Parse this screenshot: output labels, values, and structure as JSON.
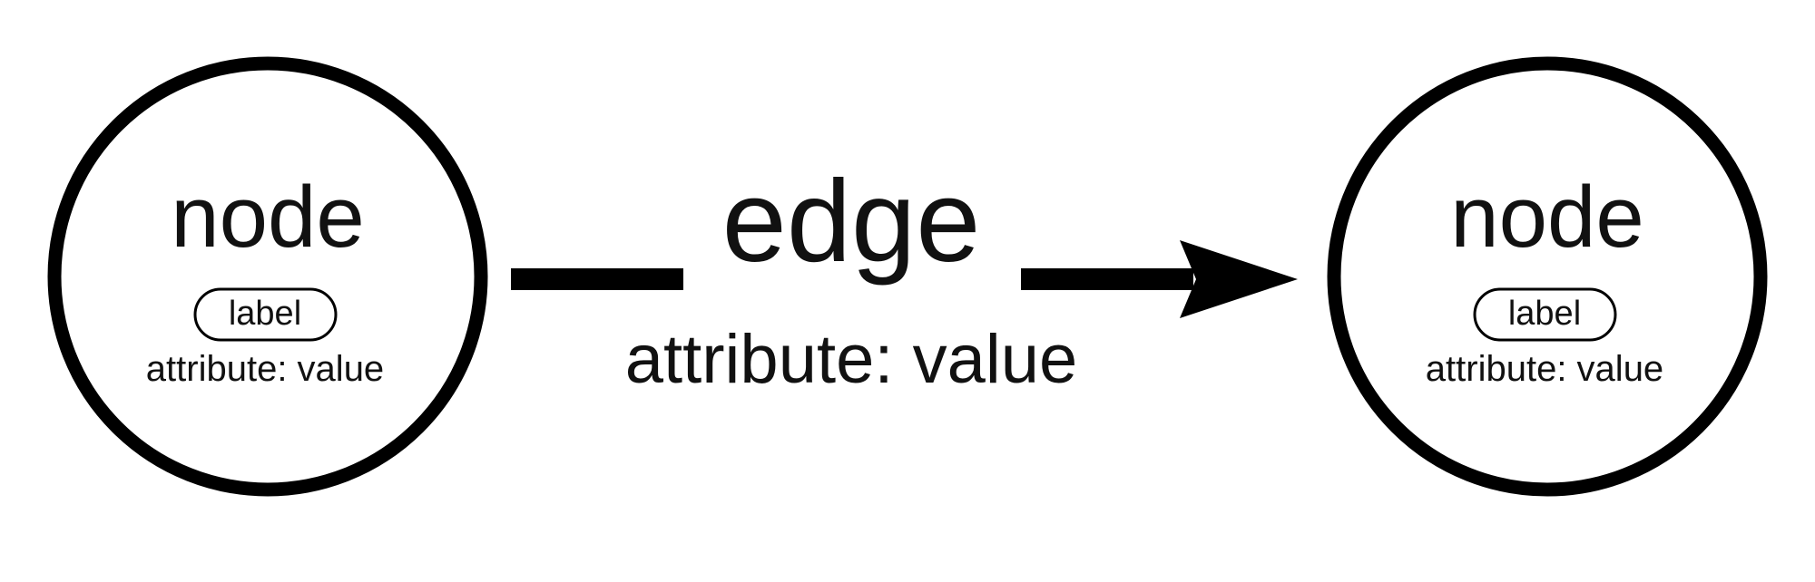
{
  "nodes": [
    {
      "title": "node",
      "label": "label",
      "attribute": "attribute: value"
    },
    {
      "title": "node",
      "label": "label",
      "attribute": "attribute: value"
    }
  ],
  "edge": {
    "title": "edge",
    "attribute": "attribute: value",
    "directed": true
  },
  "colors": {
    "stroke": "#000000",
    "text": "#111111",
    "background": "#ffffff"
  }
}
